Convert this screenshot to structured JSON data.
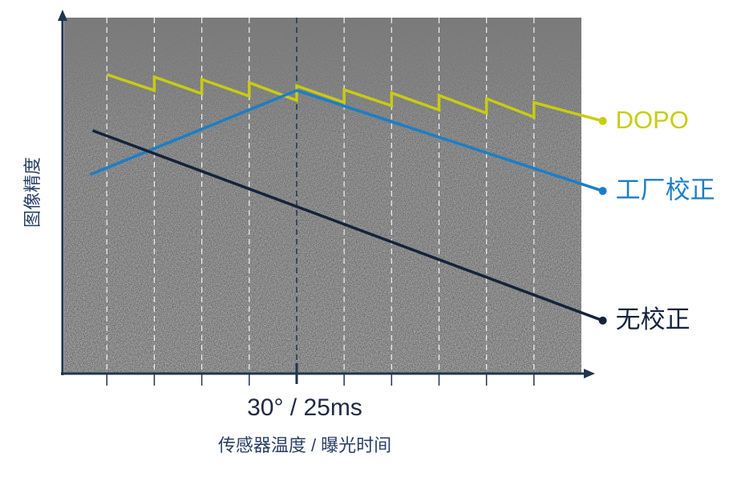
{
  "chart_data": {
    "type": "line",
    "x_label": "传感器温度 / 曝光时间",
    "y_label": "图像精度",
    "xlim": [
      -0.9,
      10
    ],
    "ylim": [
      0,
      10
    ],
    "grid_x": [
      0,
      1,
      2,
      3,
      5,
      6,
      7,
      8,
      9
    ],
    "marker": {
      "value": 4,
      "label": "30° / 25ms"
    },
    "series": [
      {
        "name": "DOPO",
        "color": "#c8cc12",
        "x": [
          0,
          1,
          1,
          2,
          2,
          3,
          3,
          4,
          4,
          5,
          5,
          6,
          6,
          7,
          7,
          8,
          8,
          9,
          9,
          10.45
        ],
        "values": [
          8.4,
          7.95,
          8.33,
          7.86,
          8.26,
          7.79,
          8.17,
          7.67,
          8.08,
          7.61,
          7.97,
          7.52,
          7.88,
          7.4,
          7.81,
          7.31,
          7.72,
          7.2,
          7.61,
          7.09
        ]
      },
      {
        "name": "工厂校正",
        "color": "#1b7ec8",
        "x": [
          -0.35,
          4,
          10.45
        ],
        "values": [
          5.58,
          7.95,
          5.12
        ]
      },
      {
        "name": "无校正",
        "color": "#15233a",
        "x": [
          -0.3,
          10.45
        ],
        "values": [
          6.82,
          1.47
        ]
      }
    ]
  }
}
